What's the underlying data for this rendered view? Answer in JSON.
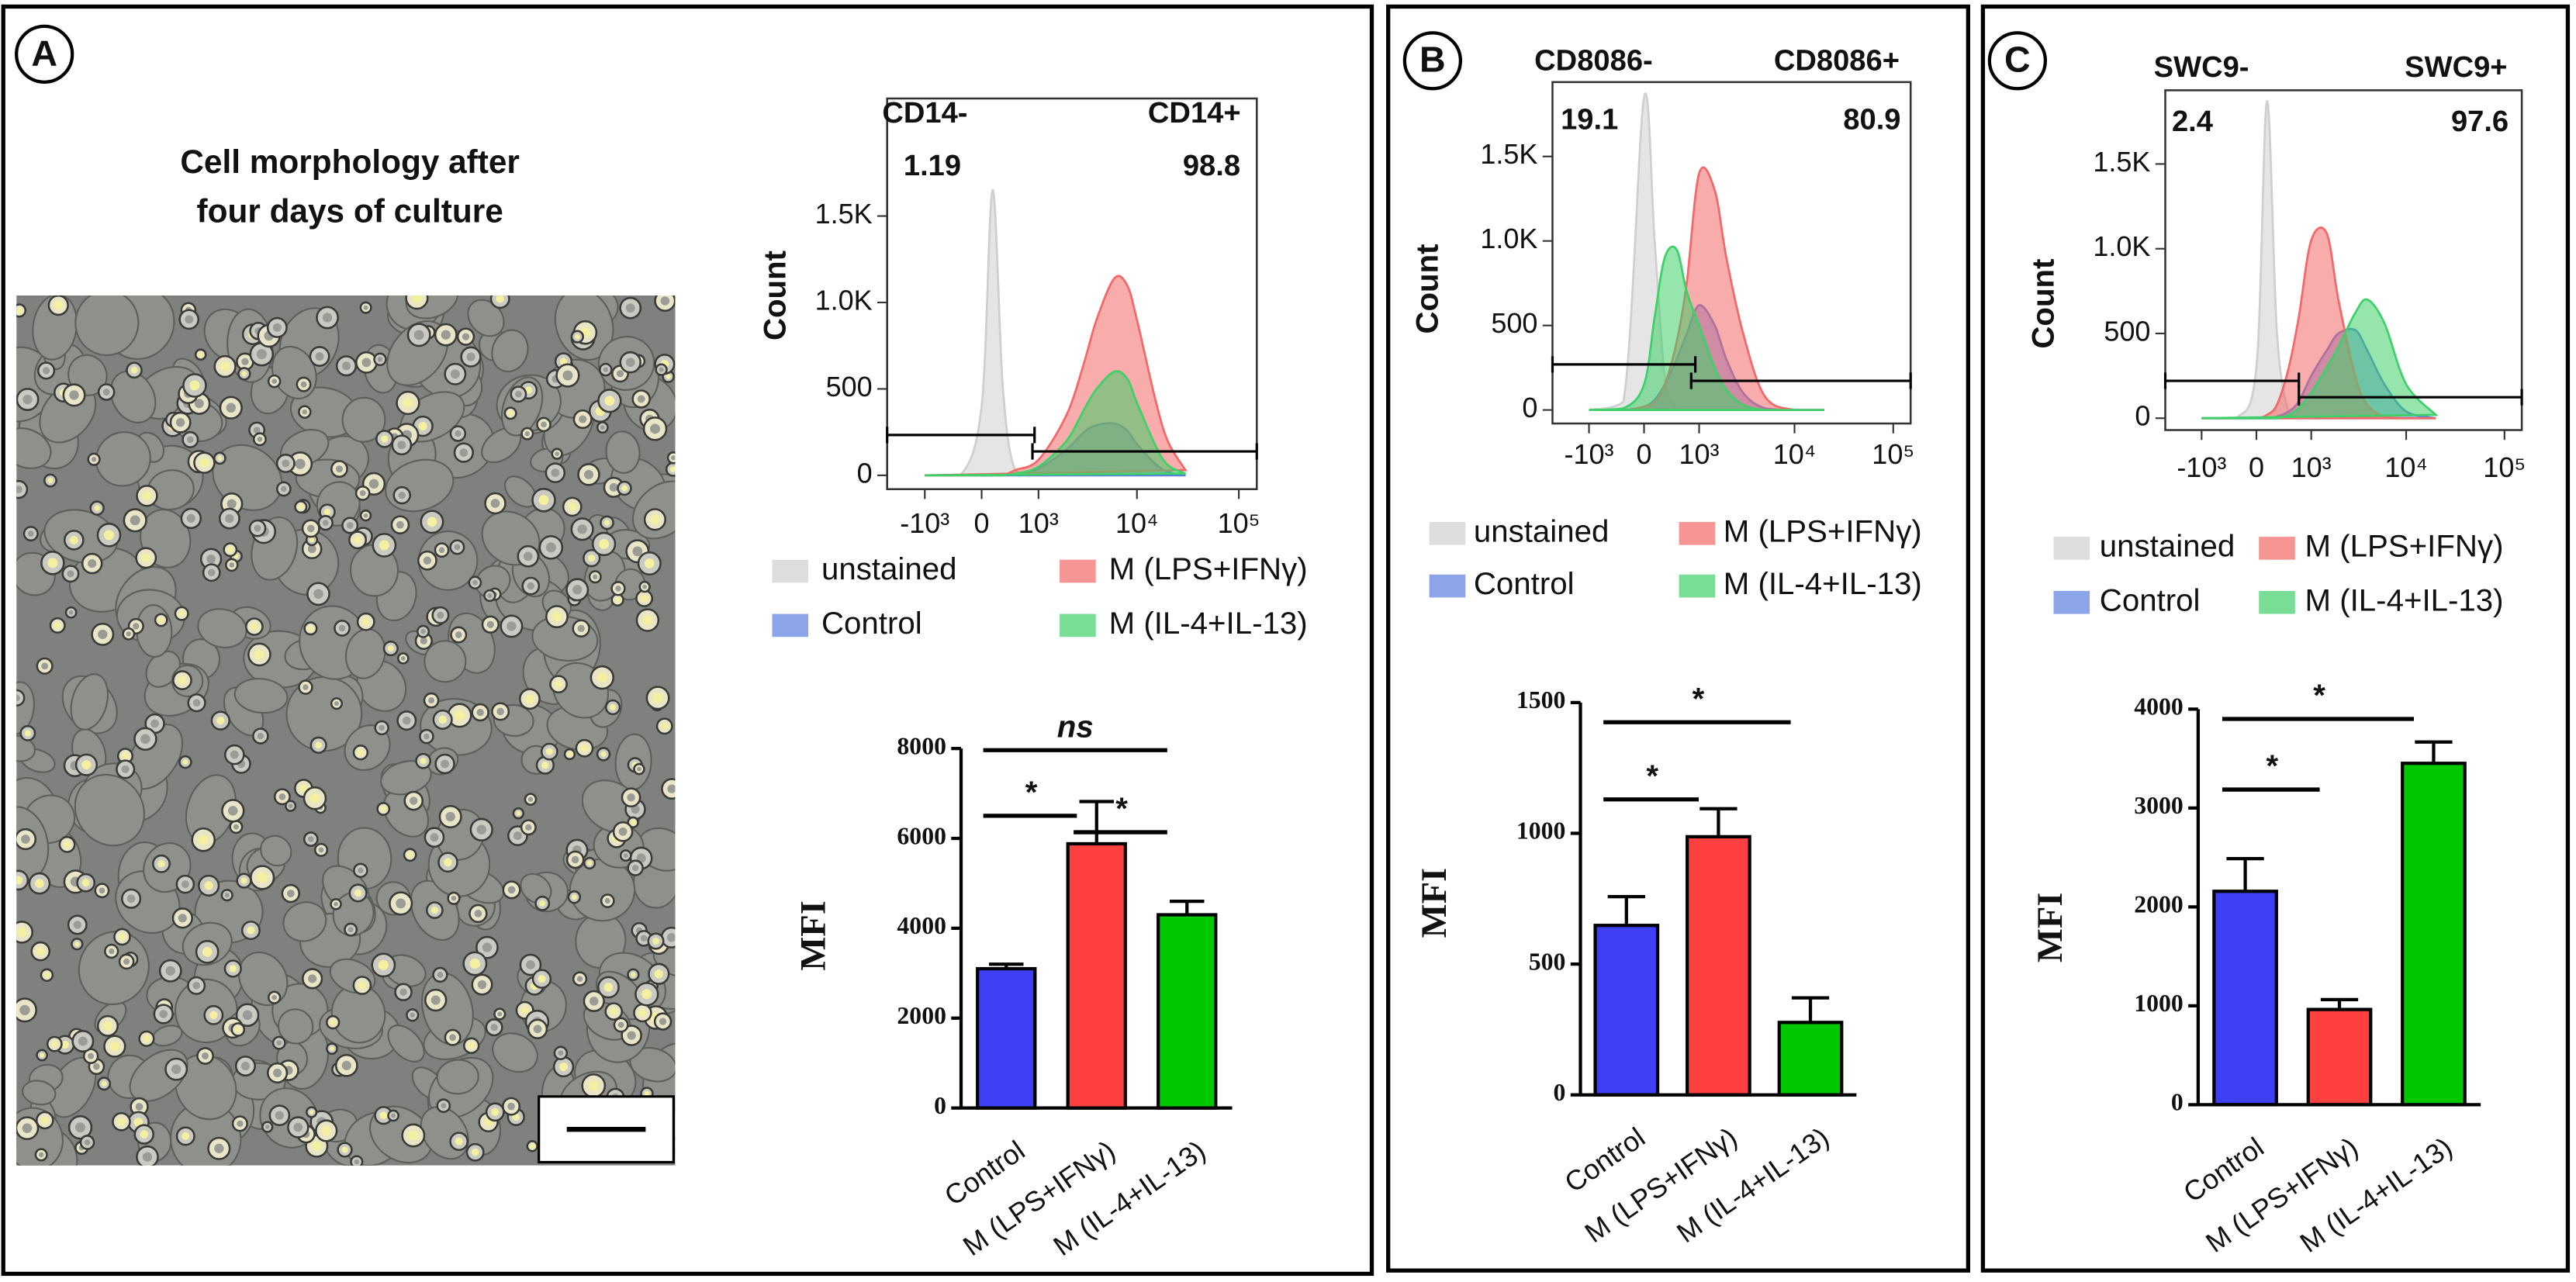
{
  "panels": [
    {
      "label": "A",
      "caption": [
        "Cell morphology after",
        "four days of culture"
      ]
    },
    {
      "label": "B"
    },
    {
      "label": "C"
    }
  ],
  "chart_data": [
    {
      "type": "density",
      "x_scale": "biexponential",
      "ylabel": "Count",
      "gates": [
        {
          "label": "CD14-",
          "percent": 1.19,
          "range": [
            -2500,
            900
          ]
        },
        {
          "label": "CD14+",
          "percent": 98.8,
          "range": [
            850,
            150000
          ]
        }
      ],
      "x": [
        -1000,
        -300,
        0,
        150,
        300,
        500,
        1000,
        2000,
        3000,
        4000,
        6000,
        8000,
        10000,
        15000,
        20000,
        30000
      ],
      "series": [
        {
          "name": "unstained",
          "color": "#cfcfcf",
          "values": [
            0,
            0,
            400,
            1650,
            500,
            30,
            0,
            0,
            0,
            0,
            0,
            0,
            0,
            0,
            0,
            0
          ]
        },
        {
          "name": "Control",
          "color": "#5b7fe0",
          "values": [
            0,
            0,
            0,
            0,
            0,
            10,
            40,
            150,
            250,
            290,
            300,
            260,
            180,
            70,
            20,
            0
          ]
        },
        {
          "name": "M (LPS+IFNγ)",
          "color": "#f36868",
          "values": [
            0,
            0,
            0,
            0,
            0,
            30,
            90,
            350,
            650,
            900,
            1140,
            1100,
            900,
            450,
            200,
            30
          ]
        },
        {
          "name": "M (IL-4+IL-13)",
          "color": "#3fd06a",
          "values": [
            0,
            0,
            0,
            0,
            0,
            10,
            50,
            200,
            380,
            500,
            600,
            560,
            420,
            180,
            60,
            10
          ]
        }
      ],
      "xlim": [
        -2500,
        150000
      ],
      "xticks": [
        {
          "value": -1000,
          "label": "-10³"
        },
        0,
        {
          "value": 1000,
          "label": "10³"
        },
        {
          "value": 10000,
          "label": "10⁴"
        },
        {
          "value": 100000,
          "label": "10⁵"
        }
      ],
      "ylim": [
        -80,
        2180
      ],
      "yticks": [
        0,
        500,
        {
          "value": 1000,
          "label": "1.0K"
        },
        {
          "value": 1500,
          "label": "1.5K"
        }
      ],
      "legend": "bottom"
    },
    {
      "type": "bar",
      "ylabel": "MFI",
      "categories": [
        "Control",
        "M (LPS+IFNγ)",
        "M (IL-4+IL-13)"
      ],
      "values": [
        3100,
        5880,
        4300
      ],
      "errors": [
        100,
        940,
        300
      ],
      "colors": [
        "#3f3ff5",
        "#ff4040",
        "#00c800"
      ],
      "ylim": [
        0,
        8000
      ],
      "yticks": [
        0,
        2000,
        4000,
        6000,
        8000
      ],
      "significance": [
        {
          "between": [
            0,
            1
          ],
          "label": "*"
        },
        {
          "between": [
            1,
            2
          ],
          "label": "*"
        },
        {
          "between": [
            0,
            2
          ],
          "label": "ns"
        }
      ]
    },
    {
      "type": "density",
      "x_scale": "biexponential",
      "ylabel": "Count",
      "gates": [
        {
          "label": "CD8086-",
          "percent": 19.1,
          "range": [
            -2500,
            900
          ]
        },
        {
          "label": "CD8086+",
          "percent": 80.9,
          "range": [
            800,
            150000
          ]
        }
      ],
      "x": [
        -1000,
        -300,
        0,
        150,
        300,
        500,
        700,
        1000,
        1500,
        2000,
        3000,
        5000,
        10000,
        20000
      ],
      "series": [
        {
          "name": "unstained",
          "color": "#cfcfcf",
          "values": [
            0,
            50,
            1850,
            1000,
            200,
            10,
            0,
            0,
            0,
            0,
            0,
            0,
            0,
            0
          ]
        },
        {
          "name": "Control",
          "color": "#5b7fe0",
          "values": [
            0,
            0,
            20,
            60,
            150,
            300,
            450,
            620,
            500,
            300,
            100,
            10,
            0,
            0
          ]
        },
        {
          "name": "M (LPS+IFNγ)",
          "color": "#f36868",
          "values": [
            0,
            0,
            20,
            50,
            150,
            400,
            750,
            1400,
            1300,
            900,
            450,
            80,
            0,
            0
          ]
        },
        {
          "name": "M (IL-4+IL-13)",
          "color": "#3fd06a",
          "values": [
            0,
            10,
            150,
            550,
            900,
            950,
            700,
            500,
            250,
            120,
            30,
            0,
            0,
            0
          ]
        }
      ],
      "xlim": [
        -2500,
        150000
      ],
      "xticks": [
        {
          "value": -1000,
          "label": "-10³"
        },
        0,
        {
          "value": 1000,
          "label": "10³"
        },
        {
          "value": 10000,
          "label": "10⁴"
        },
        {
          "value": 100000,
          "label": "10⁵"
        }
      ],
      "ylim": [
        -80,
        1940
      ],
      "yticks": [
        0,
        500,
        {
          "value": 1000,
          "label": "1.0K"
        },
        {
          "value": 1500,
          "label": "1.5K"
        }
      ],
      "legend": "bottom"
    },
    {
      "type": "bar",
      "ylabel": "MFI",
      "categories": [
        "Control",
        "M (LPS+IFNγ)",
        "M (IL-4+IL-13)"
      ],
      "values": [
        648,
        987,
        277
      ],
      "errors": [
        110,
        107,
        94
      ],
      "colors": [
        "#3f3ff5",
        "#ff4040",
        "#00c800"
      ],
      "ylim": [
        0,
        1500
      ],
      "yticks": [
        0,
        500,
        1000,
        1500
      ],
      "significance": [
        {
          "between": [
            0,
            1
          ],
          "label": "*"
        },
        {
          "between": [
            0,
            2
          ],
          "label": "*"
        }
      ]
    },
    {
      "type": "density",
      "x_scale": "biexponential",
      "ylabel": "Count",
      "gates": [
        {
          "label": "SWC9-",
          "percent": 2.4,
          "range": [
            -2500,
            700
          ]
        },
        {
          "label": "SWC9+",
          "percent": 97.6,
          "range": [
            700,
            150000
          ]
        }
      ],
      "x": [
        -1000,
        -300,
        0,
        150,
        300,
        500,
        700,
        1000,
        1500,
        2000,
        3000,
        4000,
        6000,
        10000,
        20000
      ],
      "series": [
        {
          "name": "unstained",
          "color": "#cfcfcf",
          "values": [
            0,
            0,
            300,
            1870,
            500,
            30,
            0,
            0,
            0,
            0,
            0,
            0,
            0,
            0,
            0
          ]
        },
        {
          "name": "Control",
          "color": "#5b7fe0",
          "values": [
            0,
            0,
            0,
            0,
            10,
            40,
            100,
            250,
            400,
            500,
            520,
            400,
            200,
            40,
            0
          ]
        },
        {
          "name": "M (LPS+IFNγ)",
          "color": "#f36868",
          "values": [
            0,
            0,
            0,
            20,
            80,
            300,
            600,
            1050,
            1090,
            700,
            250,
            80,
            10,
            0,
            0
          ]
        },
        {
          "name": "M (IL-4+IL-13)",
          "color": "#3fd06a",
          "values": [
            0,
            0,
            0,
            0,
            0,
            20,
            60,
            150,
            300,
            420,
            620,
            700,
            560,
            200,
            20
          ]
        }
      ],
      "xlim": [
        -2500,
        150000
      ],
      "xticks": [
        {
          "value": -1000,
          "label": "-10³"
        },
        0,
        {
          "value": 1000,
          "label": "10³"
        },
        {
          "value": 10000,
          "label": "10⁴"
        },
        {
          "value": 100000,
          "label": "10⁵"
        }
      ],
      "ylim": [
        -70,
        1935
      ],
      "yticks": [
        0,
        500,
        {
          "value": 1000,
          "label": "1.0K"
        },
        {
          "value": 1500,
          "label": "1.5K"
        }
      ],
      "legend": "bottom"
    },
    {
      "type": "bar",
      "ylabel": "MFI",
      "categories": [
        "Control",
        "M (LPS+IFNγ)",
        "M (IL-4+IL-13)"
      ],
      "values": [
        2158,
        963,
        3452
      ],
      "errors": [
        330,
        100,
        215
      ],
      "colors": [
        "#3f3ff5",
        "#ff4040",
        "#00c800"
      ],
      "ylim": [
        0,
        4000
      ],
      "yticks": [
        0,
        1000,
        2000,
        3000,
        4000
      ],
      "significance": [
        {
          "between": [
            0,
            1
          ],
          "label": "*"
        },
        {
          "between": [
            0,
            2
          ],
          "label": "*"
        }
      ]
    }
  ]
}
